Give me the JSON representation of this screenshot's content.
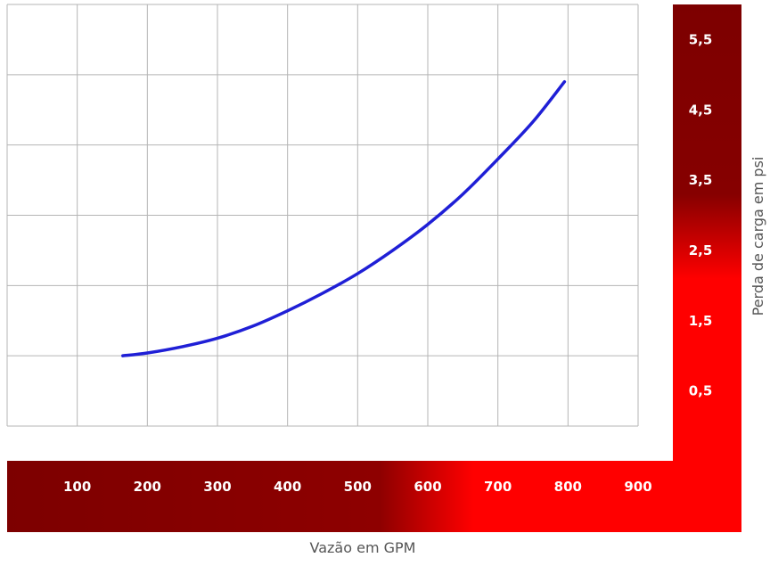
{
  "chart_data": {
    "type": "line",
    "title": "",
    "xlabel": "Vazão em GPM",
    "ylabel": "Perda de carga em psi",
    "xlim": [
      0,
      900
    ],
    "ylim": [
      0,
      6
    ],
    "grid": true,
    "x_ticks": [
      "100",
      "200",
      "300",
      "400",
      "500",
      "600",
      "700",
      "800",
      "900"
    ],
    "y_ticks": [
      "5,5",
      "4,5",
      "3,5",
      "2,5",
      "1,5",
      "0,5"
    ],
    "series": [
      {
        "x": [
          165,
          200,
          250,
          300,
          350,
          400,
          450,
          500,
          550,
          600,
          650,
          700,
          750,
          795
        ],
        "y": [
          1.0,
          1.04,
          1.13,
          1.25,
          1.42,
          1.64,
          1.89,
          2.17,
          2.5,
          2.87,
          3.3,
          3.8,
          4.33,
          4.9
        ]
      }
    ],
    "colors": {
      "line": "#1f1fd6",
      "grid": "#b5b5b5",
      "band_dark": "#7d0000",
      "band_bright": "#ff0000"
    }
  }
}
